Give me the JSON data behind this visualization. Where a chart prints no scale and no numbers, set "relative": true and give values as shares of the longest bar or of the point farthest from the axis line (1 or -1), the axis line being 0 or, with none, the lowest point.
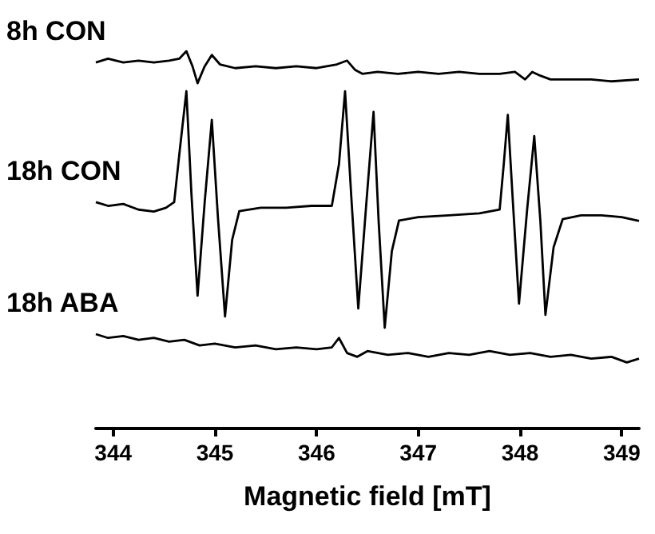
{
  "chart_data": {
    "type": "line",
    "relative": true,
    "xlabel": "Magnetic field [mT]",
    "xlim": [
      343.83,
      349.17
    ],
    "xticks": [
      344,
      345,
      346,
      347,
      348,
      349
    ],
    "grid": false,
    "legend": false,
    "marker": "none",
    "line_style": "solid",
    "tick_labels": "x",
    "series": [
      {
        "name": "8h CON",
        "color": "#000000",
        "x": [
          343.83,
          343.95,
          344.1,
          344.25,
          344.4,
          344.55,
          344.65,
          344.72,
          344.78,
          344.83,
          344.9,
          344.97,
          345.05,
          345.2,
          345.4,
          345.6,
          345.8,
          346.0,
          346.2,
          346.3,
          346.38,
          346.45,
          346.6,
          346.8,
          347.0,
          347.2,
          347.4,
          347.6,
          347.8,
          347.95,
          348.05,
          348.12,
          348.2,
          348.3,
          348.5,
          348.7,
          348.9,
          349.17
        ],
        "values": [
          0.97,
          0.98,
          0.97,
          0.975,
          0.97,
          0.975,
          0.98,
          1.0,
          0.96,
          0.915,
          0.96,
          0.99,
          0.965,
          0.955,
          0.96,
          0.955,
          0.96,
          0.955,
          0.965,
          0.975,
          0.95,
          0.94,
          0.945,
          0.94,
          0.945,
          0.94,
          0.945,
          0.94,
          0.94,
          0.945,
          0.925,
          0.945,
          0.935,
          0.925,
          0.925,
          0.925,
          0.92,
          0.925
        ]
      },
      {
        "name": "18h CON",
        "color": "#000000",
        "x": [
          343.83,
          343.95,
          344.1,
          344.25,
          344.4,
          344.52,
          344.6,
          344.66,
          344.72,
          344.77,
          344.83,
          344.9,
          344.97,
          345.03,
          345.1,
          345.17,
          345.24,
          345.45,
          345.7,
          345.95,
          346.15,
          346.22,
          346.28,
          346.34,
          346.41,
          346.49,
          346.56,
          346.61,
          346.67,
          346.74,
          346.81,
          347.0,
          347.3,
          347.6,
          347.8,
          347.84,
          347.88,
          347.93,
          347.99,
          348.07,
          348.14,
          348.2,
          348.25,
          348.33,
          348.42,
          348.6,
          348.8,
          349.0,
          349.17
        ],
        "values": [
          0.6,
          0.59,
          0.595,
          0.58,
          0.575,
          0.585,
          0.6,
          0.75,
          0.894,
          0.62,
          0.352,
          0.6,
          0.818,
          0.56,
          0.297,
          0.5,
          0.576,
          0.585,
          0.585,
          0.59,
          0.59,
          0.7,
          0.894,
          0.62,
          0.318,
          0.6,
          0.839,
          0.55,
          0.267,
          0.47,
          0.551,
          0.56,
          0.565,
          0.57,
          0.58,
          0.7,
          0.831,
          0.6,
          0.331,
          0.58,
          0.775,
          0.55,
          0.301,
          0.48,
          0.555,
          0.565,
          0.565,
          0.56,
          0.55
        ]
      },
      {
        "name": "18h ABA",
        "color": "#000000",
        "x": [
          343.83,
          343.95,
          344.1,
          344.25,
          344.4,
          344.55,
          344.7,
          344.85,
          345.0,
          345.2,
          345.4,
          345.6,
          345.8,
          346.0,
          346.15,
          346.22,
          346.3,
          346.4,
          346.5,
          346.7,
          346.9,
          347.1,
          347.3,
          347.5,
          347.7,
          347.9,
          348.1,
          348.3,
          348.5,
          348.7,
          348.9,
          349.05,
          349.17
        ],
        "values": [
          0.25,
          0.24,
          0.245,
          0.235,
          0.24,
          0.23,
          0.235,
          0.22,
          0.225,
          0.215,
          0.22,
          0.21,
          0.215,
          0.21,
          0.215,
          0.24,
          0.2,
          0.19,
          0.205,
          0.195,
          0.2,
          0.19,
          0.2,
          0.195,
          0.205,
          0.195,
          0.2,
          0.19,
          0.195,
          0.185,
          0.19,
          0.175,
          0.185
        ]
      }
    ]
  }
}
